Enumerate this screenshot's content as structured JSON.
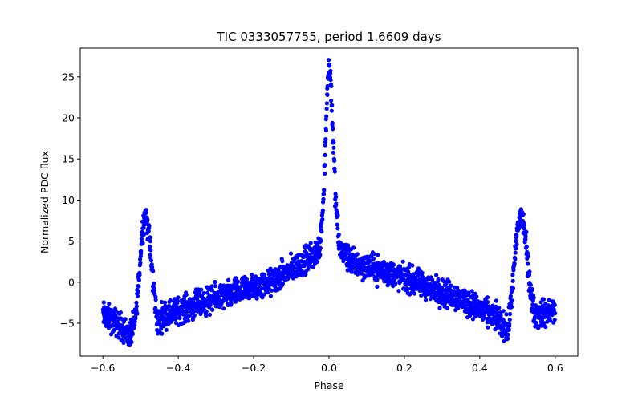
{
  "chart_data": {
    "type": "scatter",
    "title": "TIC 0333057755, period 1.6609 days",
    "xlabel": "Phase",
    "ylabel": "Normalized PDC flux",
    "xlim": [
      -0.66,
      0.66
    ],
    "ylim": [
      -9.0,
      28.5
    ],
    "xticks": [
      -0.6,
      -0.4,
      -0.2,
      0.0,
      0.2,
      0.4,
      0.6
    ],
    "xtick_labels": [
      "−0.6",
      "−0.4",
      "−0.2",
      "0.0",
      "0.2",
      "0.4",
      "0.6"
    ],
    "yticks": [
      -5,
      0,
      5,
      10,
      15,
      20,
      25
    ],
    "ytick_labels": [
      "−5",
      "0",
      "5",
      "10",
      "15",
      "20",
      "25"
    ],
    "grid": false,
    "series": [
      {
        "name": "PDC flux",
        "color": "#0000ff",
        "marker": "circle",
        "x_range": [
          -0.6,
          0.6
        ],
        "profile": [
          {
            "phase": -0.6,
            "flux": -4.0
          },
          {
            "phase": -0.56,
            "flux": -5.0
          },
          {
            "phase": -0.53,
            "flux": -6.5
          },
          {
            "phase": -0.515,
            "flux": -5.0
          },
          {
            "phase": -0.505,
            "flux": 0.0
          },
          {
            "phase": -0.495,
            "flux": 6.5
          },
          {
            "phase": -0.487,
            "flux": 8.5
          },
          {
            "phase": -0.478,
            "flux": 6.0
          },
          {
            "phase": -0.468,
            "flux": 0.5
          },
          {
            "phase": -0.455,
            "flux": -5.0
          },
          {
            "phase": -0.44,
            "flux": -4.0
          },
          {
            "phase": -0.3,
            "flux": -2.0
          },
          {
            "phase": -0.15,
            "flux": 0.0
          },
          {
            "phase": -0.05,
            "flux": 3.0
          },
          {
            "phase": -0.025,
            "flux": 4.0
          },
          {
            "phase": -0.015,
            "flux": 10.0
          },
          {
            "phase": -0.008,
            "flux": 19.0
          },
          {
            "phase": -0.003,
            "flux": 25.0
          },
          {
            "phase": 0.0,
            "flux": 26.5
          },
          {
            "phase": 0.004,
            "flux": 25.0
          },
          {
            "phase": 0.01,
            "flux": 19.0
          },
          {
            "phase": 0.017,
            "flux": 10.0
          },
          {
            "phase": 0.028,
            "flux": 4.0
          },
          {
            "phase": 0.06,
            "flux": 2.5
          },
          {
            "phase": 0.2,
            "flux": 0.5
          },
          {
            "phase": 0.35,
            "flux": -2.0
          },
          {
            "phase": 0.45,
            "flux": -4.5
          },
          {
            "phase": 0.475,
            "flux": -6.0
          },
          {
            "phase": 0.488,
            "flux": 0.0
          },
          {
            "phase": 0.5,
            "flux": 6.5
          },
          {
            "phase": 0.51,
            "flux": 8.5
          },
          {
            "phase": 0.52,
            "flux": 6.0
          },
          {
            "phase": 0.532,
            "flux": 0.0
          },
          {
            "phase": 0.545,
            "flux": -4.0
          },
          {
            "phase": 0.6,
            "flux": -3.5
          }
        ],
        "scatter_spread": 1.6,
        "n_points": 2200
      }
    ]
  }
}
